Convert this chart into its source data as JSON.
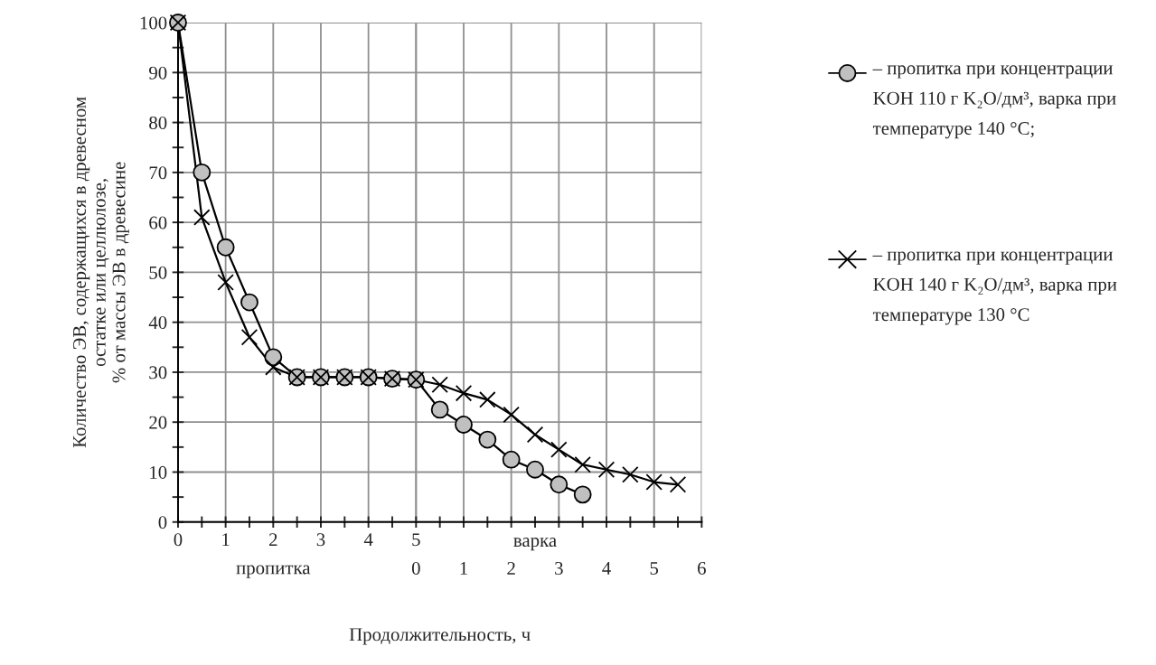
{
  "chart_data": {
    "type": "line",
    "xlabel": "Продолжительность, ч",
    "ylabel": "Количество ЭВ, содержащихся в древесном\nостатке или целлюлозе,\n% от массы ЭВ в древесине",
    "annotations": [
      "пропитка",
      "варка"
    ],
    "xlim": [
      0,
      11
    ],
    "ylim": [
      0,
      100
    ],
    "xticks": [
      0,
      {
        "value": 0.5,
        "label": null
      },
      1,
      {
        "value": 1.5,
        "label": null
      },
      2,
      {
        "value": 2.5,
        "label": null
      },
      3,
      {
        "value": 3.5,
        "label": null
      },
      4,
      {
        "value": 4.5,
        "label": null
      },
      5,
      {
        "value": 5.5,
        "label": null
      },
      {
        "value": 6,
        "label": null
      },
      {
        "value": 6.5,
        "label": null
      },
      {
        "value": 7,
        "label": null
      },
      {
        "value": 7.5,
        "label": null
      },
      {
        "value": 8,
        "label": null
      },
      {
        "value": 8.5,
        "label": null
      },
      {
        "value": 9,
        "label": null
      },
      {
        "value": 9.5,
        "label": null
      },
      {
        "value": 10,
        "label": null
      },
      {
        "value": 10.5,
        "label": null
      },
      {
        "value": 11,
        "label": null
      }
    ],
    "x2lim": [
      -5,
      6
    ],
    "x2ticks": [
      0,
      1,
      2,
      3,
      4,
      5,
      6
    ],
    "yticks": [
      0,
      {
        "value": 5,
        "label": null
      },
      10,
      {
        "value": 15,
        "label": null
      },
      20,
      {
        "value": 25,
        "label": null
      },
      30,
      {
        "value": 35,
        "label": null
      },
      40,
      {
        "value": 45,
        "label": null
      },
      50,
      {
        "value": 55,
        "label": null
      },
      60,
      {
        "value": 65,
        "label": null
      },
      70,
      {
        "value": 75,
        "label": null
      },
      80,
      {
        "value": 85,
        "label": null
      },
      90,
      {
        "value": 95,
        "label": null
      },
      100
    ],
    "grid": true,
    "legend": "right",
    "line_style": "solid",
    "series": [
      {
        "name": "– пропитка при концентрации KOH 110 г K₂O/дм³, варка при температуре 140 °C;",
        "color": "#c0c0c0",
        "marker": "circle",
        "x": [
          0,
          0.5,
          1,
          1.5,
          2,
          2.5,
          3,
          3.5,
          4,
          4.5,
          5,
          5.5,
          6,
          6.5,
          7,
          7.5,
          8,
          8.5
        ],
        "values": [
          100,
          70,
          55,
          44,
          33,
          29,
          29,
          29,
          29,
          28.7,
          28.5,
          22.5,
          19.5,
          16.5,
          12.5,
          10.5,
          7.5,
          5.5
        ]
      },
      {
        "name": "– пропитка при концентрации KOH 140 г K₂O/дм³, варка при температуре 130 °C",
        "color": "#000000",
        "marker": "cross",
        "x": [
          0,
          0.5,
          1,
          1.5,
          2,
          2.5,
          3,
          3.5,
          4,
          4.5,
          5,
          5.5,
          6,
          6.5,
          7,
          7.5,
          8,
          8.5,
          9,
          9.5,
          10,
          10.5
        ],
        "values": [
          100,
          61,
          48,
          37,
          31,
          29,
          29,
          29,
          29,
          28.7,
          28.5,
          27.5,
          25.8,
          24.5,
          21.5,
          17.5,
          14.5,
          11.5,
          10.5,
          9.5,
          8,
          7.5
        ]
      }
    ]
  }
}
